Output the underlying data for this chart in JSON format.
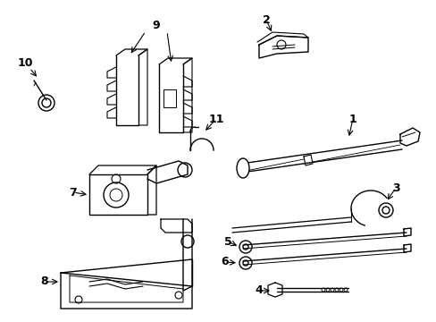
{
  "background_color": "#ffffff",
  "line_color": "#000000",
  "lw": 1.0,
  "figsize": [
    4.89,
    3.6
  ],
  "dpi": 100
}
